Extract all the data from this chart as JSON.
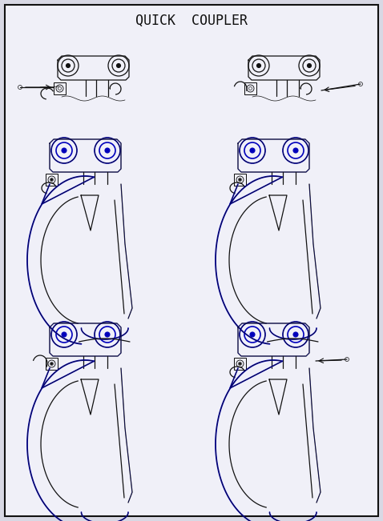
{
  "title": "QUICK  COUPLER",
  "title_fs": 12,
  "bg": "#d8d8e4",
  "panel_bg": "#f0f0f8",
  "black": "#111111",
  "blue": "#0000bb",
  "lw_main": 0.9,
  "lw_blue": 1.2,
  "lw_thin": 0.45
}
